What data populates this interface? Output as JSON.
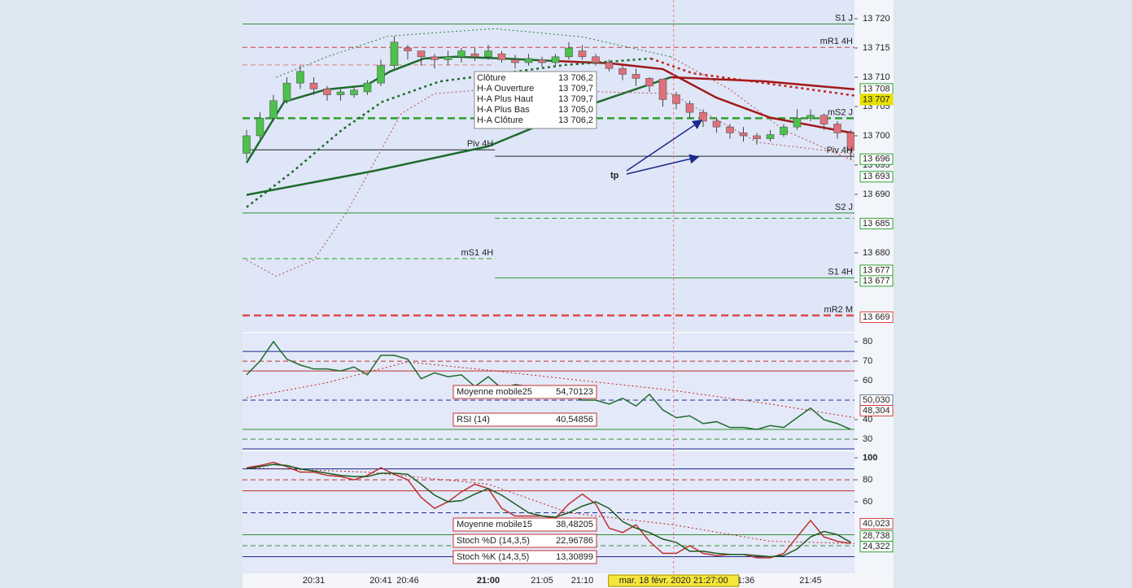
{
  "chart_data": [
    {
      "type": "candlestick",
      "categories": [
        null,
        null,
        null,
        null,
        null,
        "20:31",
        null,
        null,
        null,
        null,
        "20:41",
        null,
        "20:46",
        null,
        null,
        null,
        null,
        null,
        "21:00",
        null,
        null,
        null,
        "21:05",
        null,
        null,
        "21:10",
        null,
        null,
        null,
        null,
        null,
        null,
        null,
        null,
        null,
        null,
        null,
        "21:36",
        null,
        null,
        null,
        null,
        "21:45",
        null,
        null,
        null
      ],
      "open": [
        13697,
        13700,
        13703,
        13706,
        13709,
        13709,
        13708,
        13707,
        13707,
        13707.5,
        13709,
        13712,
        13715,
        13714.5,
        13713.5,
        13713,
        13713.5,
        13714,
        13713.5,
        13714,
        13713,
        13712.5,
        13713,
        13712.5,
        13713.5,
        13714.5,
        13713.5,
        13712.5,
        13711.5,
        13710.5,
        13709.8,
        13709.7,
        13707,
        13705.5,
        13704,
        13702.5,
        13701.5,
        13700.5,
        13700,
        13699.5,
        13700.2,
        13701.5,
        13703,
        13703.5,
        13702,
        13700.5
      ],
      "high": [
        13701,
        13704,
        13707,
        13710,
        13712,
        13710,
        13708.5,
        13708,
        13708.5,
        13709.5,
        13713,
        13717,
        13715.5,
        13714.5,
        13714,
        13714.5,
        13715,
        13715,
        13715.5,
        13714.5,
        13713.8,
        13714,
        13713.5,
        13714,
        13716,
        13715.5,
        13714,
        13713,
        13712,
        13711.5,
        13710,
        13709.7,
        13707.5,
        13706,
        13704.5,
        13703,
        13702,
        13701.5,
        13700.5,
        13701,
        13702,
        13704.5,
        13704.5,
        13703.8,
        13702.5,
        13701
      ],
      "low": [
        13696,
        13699.5,
        13702.5,
        13705.5,
        13708,
        13707,
        13706,
        13706,
        13706.5,
        13707,
        13708.5,
        13711.5,
        13713,
        13712,
        13711.5,
        13712,
        13712.5,
        13712.8,
        13713,
        13712.5,
        13711.5,
        13712,
        13711.8,
        13712,
        13713,
        13713,
        13712,
        13711,
        13709.5,
        13708.5,
        13707.5,
        13705.0,
        13704.5,
        13703,
        13701.5,
        13700.5,
        13699.5,
        13699,
        13698.5,
        13699,
        13699.8,
        13701,
        13702.5,
        13701,
        13699.5,
        13696
      ],
      "close": [
        13700,
        13703,
        13706,
        13709,
        13711,
        13708,
        13707,
        13707.5,
        13707.8,
        13709,
        13712,
        13716,
        13714.5,
        13713.5,
        13713,
        13713.5,
        13714.5,
        13713.5,
        13714.5,
        13713,
        13712.5,
        13713.2,
        13712.5,
        13713.5,
        13715,
        13713.5,
        13712.5,
        13711.5,
        13710.5,
        13709.8,
        13708.5,
        13706.2,
        13705.5,
        13704,
        13702.5,
        13701.5,
        13700.5,
        13700,
        13699.5,
        13700.2,
        13701.5,
        13703,
        13703.5,
        13702,
        13700.5,
        13697.5
      ],
      "up_color": "#4cc24c",
      "down_color": "#e0707c",
      "ylim": [
        13666.5,
        13723.2
      ],
      "yticks": [
        {
          "value": 13720,
          "label": "13 720"
        },
        {
          "value": 13715,
          "label": "13 715"
        },
        {
          "value": 13710,
          "label": "13 710"
        },
        {
          "value": 13705,
          "label": "13 705"
        },
        {
          "value": 13700,
          "label": "13 700"
        },
        {
          "value": 13695,
          "label": "13 695"
        },
        {
          "value": 13690,
          "label": "13 690"
        },
        {
          "value": 13680,
          "label": "13 680"
        },
        {
          "value": 13675,
          "label": "13 675"
        }
      ],
      "overlays": [
        {
          "color": "#1d6b2c",
          "style": "thick",
          "x": [
            0,
            9.5,
            18,
            25.3,
            31.6
          ],
          "values": [
            13689.9,
            13694,
            13698.2,
            13705.1,
            13710
          ]
        },
        {
          "color": "#a01818",
          "style": "thick",
          "x": [
            31.6,
            38.6,
            45.5
          ],
          "values": [
            13710,
            13709.3,
            13707.9
          ]
        },
        {
          "color": "#1d6b2c",
          "style": "thick",
          "x": [
            0,
            2.8,
            5.9,
            8.9,
            10.7,
            13.2,
            15.6,
            19.2,
            22.8
          ],
          "values": [
            13695.4,
            13705.8,
            13707.9,
            13708.6,
            13711,
            13713.2,
            13713.5,
            13713.2,
            13712.8
          ]
        },
        {
          "color": "#a01818",
          "style": "thick",
          "x": [
            22.8,
            27,
            31,
            35,
            39,
            45.5
          ],
          "values": [
            13712.8,
            13712.4,
            13711.4,
            13706.5,
            13703.1,
            13700.3
          ]
        },
        {
          "color": "#1d6b2c",
          "style": "thick-dotted",
          "x": [
            0,
            3.5,
            7.1,
            10.1,
            14.4,
            19.2,
            23.7,
            30.1
          ],
          "values": [
            13687.8,
            13694,
            13701,
            13705.8,
            13709.3,
            13710.7,
            13712.1,
            13713.2
          ]
        },
        {
          "color": "#c02020",
          "style": "thick-dotted",
          "x": [
            30.1,
            33.2,
            45.5
          ],
          "values": [
            13713.2,
            13710.7,
            13706.8
          ]
        },
        {
          "color": "#2f7f3f",
          "style": "dotted",
          "x": [
            2.2,
            6,
            10.5,
            14,
            18.5,
            25,
            31.6
          ],
          "values": [
            13710,
            13713.5,
            13717,
            13717.6,
            13718.3,
            13716.9,
            13713.5
          ]
        },
        {
          "color": "#c04040",
          "style": "dotted",
          "x": [
            31.6,
            36,
            40,
            45.5
          ],
          "values": [
            13713.5,
            13707.9,
            13701,
            13695.4
          ]
        },
        {
          "color": "#b05050",
          "style": "dotted",
          "x": [
            0,
            2.2,
            5,
            7.5,
            9.5,
            11.5,
            14,
            18,
            25,
            31.6,
            38,
            45.5
          ],
          "values": [
            13678.75,
            13676,
            13678.75,
            13687.1,
            13695.4,
            13703.75,
            13707.2,
            13707.9,
            13707.6,
            13707.2,
            13698.9,
            13696.8
          ]
        }
      ],
      "levels": [
        {
          "label": "S1 J",
          "value": 13719.1,
          "color": "#2f8f2f",
          "style": "solid",
          "segment": "full"
        },
        {
          "label": "mR1 4H",
          "value": 13715.1,
          "color": "#d04040",
          "style": "dashed",
          "segment": "full"
        },
        {
          "value": 13712.1,
          "color": "#e08080",
          "style": "dashed",
          "segment": "left"
        },
        {
          "label": "mS2 J",
          "value": 13703.0,
          "color": "#2f9f2f",
          "style": "thick-dashed",
          "segment": "full"
        },
        {
          "label": "Piv 4H",
          "value": 13697.6,
          "color": "#222222",
          "style": "solid",
          "segment": "left"
        },
        {
          "label": "Piv 4H",
          "value": 13696.5,
          "color": "#222222",
          "style": "solid",
          "segment": "right"
        },
        {
          "label": "S2 J",
          "value": 13686.8,
          "color": "#2f8f2f",
          "style": "solid",
          "segment": "full"
        },
        {
          "value": 13685.9,
          "color": "#2f9f2f",
          "style": "dashed",
          "segment": "right"
        },
        {
          "label": "mS1 4H",
          "value": 13679.0,
          "color": "#2f9f2f",
          "style": "dashed",
          "segment": "left"
        },
        {
          "label": "S1 4H",
          "value": 13675.7,
          "color": "#2f8f2f",
          "style": "solid",
          "segment": "right"
        },
        {
          "label": "mR2 M",
          "value": 13669.3,
          "color": "#e04848",
          "style": "thick-dashed",
          "segment": "full"
        }
      ],
      "price_tags": [
        {
          "value": 13708,
          "label": "13 708",
          "color": "#2f9f2f"
        },
        {
          "value": 13707,
          "label": "13 707",
          "color": "#e8e000"
        },
        {
          "value": 13696,
          "label": "13 696",
          "color": "#2f9f2f"
        },
        {
          "value": 13693,
          "label": "13 693",
          "color": "#2f9f2f"
        },
        {
          "value": 13685,
          "label": "13 685",
          "color": "#2f9f2f"
        },
        {
          "value": 13677,
          "label": "13 677",
          "color": "#2f9f2f"
        },
        {
          "value": 13677,
          "label": "13 677",
          "color": "#2f9f2f"
        },
        {
          "value": 13669,
          "label": "13 669",
          "color": "#e04848"
        }
      ],
      "tooltip": [
        {
          "name": "Clôture",
          "value": "13 706,2"
        },
        {
          "name": "H-A Ouverture",
          "value": "13 709,7"
        },
        {
          "name": "H-A Plus Haut",
          "value": "13 709,7"
        },
        {
          "name": "H-A Plus Bas",
          "value": "13 705,0"
        },
        {
          "name": "H-A Clôture",
          "value": "13 706,2"
        }
      ],
      "annotation": "tp",
      "cursor": {
        "x": 31.8,
        "label": "mar. 18 févr. 2020 21:27:00"
      }
    },
    {
      "type": "line",
      "ylim": [
        24.6,
        84.2
      ],
      "yticks": [
        80,
        70,
        60,
        40,
        30
      ],
      "series": [
        {
          "color": "#1d6b2c",
          "values": [
            63,
            70,
            80,
            71,
            68,
            66,
            66,
            65,
            67,
            63,
            73,
            73,
            71,
            61,
            64,
            62,
            63,
            57,
            62,
            56,
            58,
            57,
            55,
            51,
            53,
            50,
            50,
            48,
            51,
            47,
            53,
            45,
            41,
            42,
            38,
            39,
            36,
            36,
            35,
            37,
            36,
            41,
            46,
            40,
            38,
            35
          ]
        }
      ],
      "overlays": [
        {
          "color": "#c02020",
          "style": "dotted",
          "x": [
            0,
            6,
            12,
            18.5,
            24,
            31.8,
            39,
            45.5
          ],
          "values": [
            51.25,
            59,
            69.6,
            65,
            60.8,
            55,
            48,
            40.8
          ]
        }
      ],
      "levels": [
        {
          "value": 75,
          "color": "#1c2a8c",
          "style": "solid",
          "segment": "full"
        },
        {
          "value": 70,
          "color": "#c03030",
          "style": "dashed",
          "segment": "full"
        },
        {
          "value": 65,
          "color": "#c03030",
          "style": "solid",
          "segment": "full"
        },
        {
          "value": 50,
          "color": "#1c2a8c",
          "style": "dashed",
          "segment": "full"
        },
        {
          "value": 35,
          "color": "#2f8f2f",
          "style": "solid",
          "segment": "full"
        },
        {
          "value": 30,
          "color": "#2f8f2f",
          "style": "dashed",
          "segment": "full"
        },
        {
          "value": 25,
          "color": "#1c2a8c",
          "style": "solid",
          "segment": "full"
        }
      ],
      "price_tags": [
        {
          "value": 50.03,
          "label": "50,030",
          "color": "#6a7aa0"
        },
        {
          "value": 48.304,
          "label": "48,304",
          "color": "#d04040"
        }
      ],
      "indicators": [
        {
          "name": "Moyenne mobile25",
          "value": "54,70123"
        },
        {
          "name": "RSI (14)",
          "value": "40,54856"
        }
      ]
    },
    {
      "type": "line",
      "ylim": [
        -5.2,
        105.9
      ],
      "yticks": [
        100,
        80,
        60
      ],
      "series": [
        {
          "color": "#c03030",
          "values": [
            91,
            93,
            96,
            92,
            87,
            87,
            84,
            83,
            80,
            84,
            91,
            85,
            80,
            64,
            54,
            60,
            69,
            76,
            72,
            54,
            47,
            47,
            47,
            45,
            58,
            67,
            58,
            36,
            32,
            39,
            24,
            13,
            13,
            20,
            13,
            11,
            12,
            12,
            9,
            9,
            13,
            28,
            43,
            28,
            24,
            22
          ]
        },
        {
          "color": "#1d5a1d",
          "values": [
            90,
            92,
            94,
            93,
            90,
            88,
            86,
            84,
            83,
            83,
            86,
            86,
            85,
            76,
            66,
            60,
            61,
            67,
            72,
            66,
            58,
            50,
            47,
            46,
            50,
            56,
            60,
            54,
            42,
            36,
            32,
            26,
            23,
            15,
            15,
            13,
            12,
            12,
            11,
            10,
            11,
            17,
            28,
            33,
            30,
            23
          ]
        }
      ],
      "overlays": [
        {
          "color": "#c02020",
          "style": "dotted",
          "x": [
            0,
            9,
            18,
            24,
            31.8,
            39,
            45.5
          ],
          "values": [
            91,
            87,
            76,
            50,
            39,
            24,
            22
          ]
        }
      ],
      "levels": [
        {
          "value": 90,
          "color": "#1c2a8c",
          "style": "solid",
          "segment": "full"
        },
        {
          "value": 80,
          "color": "#c03030",
          "style": "dashed",
          "segment": "full"
        },
        {
          "value": 70,
          "color": "#c03030",
          "style": "solid",
          "segment": "full"
        },
        {
          "value": 50,
          "color": "#1c2a8c",
          "style": "dashed",
          "segment": "full"
        },
        {
          "value": 30,
          "color": "#2f8f2f",
          "style": "solid",
          "segment": "full"
        },
        {
          "value": 20,
          "color": "#2f8f2f",
          "style": "dashed",
          "segment": "full"
        },
        {
          "value": 10,
          "color": "#1c2a8c",
          "style": "solid",
          "segment": "full"
        }
      ],
      "price_tags": [
        {
          "value": 40.023,
          "label": "40,023",
          "color": "#d04040"
        },
        {
          "value": 28.738,
          "label": "28,738",
          "color": "#2f9f2f"
        },
        {
          "value": 24.322,
          "label": "24,322",
          "color": "#2f9f2f"
        }
      ],
      "indicators": [
        {
          "name": "Moyenne mobile15",
          "value": "38,48205"
        },
        {
          "name": "Stoch %D (14,3,5)",
          "value": "22,96786"
        },
        {
          "name": "Stoch %K (14,3,5)",
          "value": "13,30899"
        }
      ]
    }
  ]
}
